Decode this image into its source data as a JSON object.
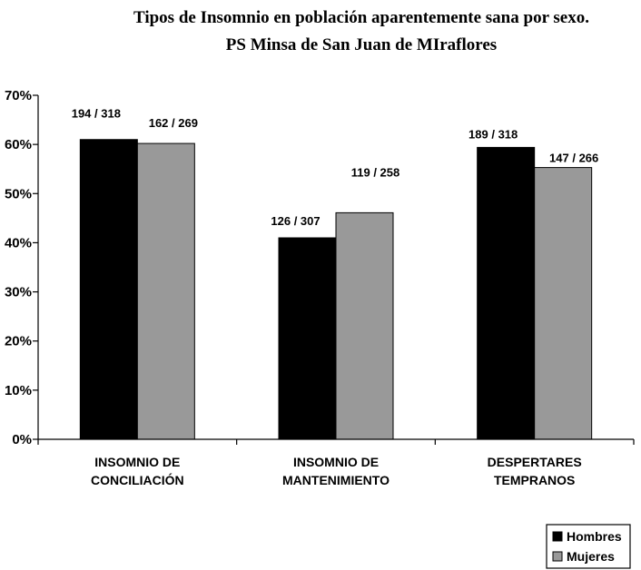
{
  "chart_data": {
    "type": "bar",
    "title": "Tipos de Insomnio en población aparentemente sana por sexo.",
    "subtitle": "PS Minsa de San Juan de MIraflores",
    "categories": [
      [
        "INSOMNIO DE",
        "CONCILIACIÓN"
      ],
      [
        "INSOMNIO DE",
        "MANTENIMIENTO"
      ],
      [
        "DESPERTARES",
        "TEMPRANOS"
      ]
    ],
    "series": [
      {
        "name": "Hombres",
        "color": "#000000",
        "values": [
          61.0,
          41.0,
          59.4
        ],
        "labels": [
          "194 / 318",
          "126 / 307",
          "189 / 318"
        ]
      },
      {
        "name": "Mujeres",
        "color": "#999999",
        "values": [
          60.2,
          46.1,
          55.3
        ],
        "labels": [
          "162 / 269",
          "119 / 258",
          "147 / 266"
        ]
      }
    ],
    "ylim": [
      0,
      70
    ],
    "yticks": [
      0,
      10,
      20,
      30,
      40,
      50,
      60,
      70
    ],
    "ytick_labels": [
      "0%",
      "10%",
      "20%",
      "30%",
      "40%",
      "50%",
      "60%",
      "70%"
    ],
    "xlabel": "",
    "ylabel": "",
    "grid": false,
    "legend_position": "bottom-right"
  }
}
